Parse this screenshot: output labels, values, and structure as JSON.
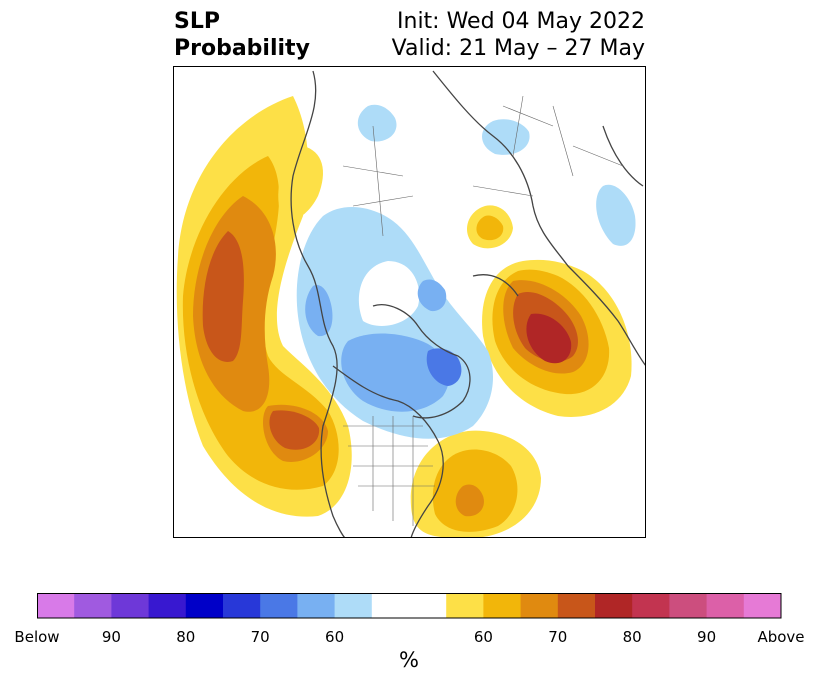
{
  "title": {
    "left_line1": "SLP",
    "left_line2": "Probability",
    "right_line1": "Init: Wed 04 May 2022",
    "right_line2": "Valid: 21 May – 27 May"
  },
  "colorbar": {
    "unit": "%",
    "tick_labels": [
      "Below",
      "90",
      "80",
      "70",
      "60",
      "60",
      "70",
      "80",
      "90",
      "Above"
    ],
    "colors": [
      "#d87ae8",
      "#a05ae0",
      "#6e38d8",
      "#3818d0",
      "#0000c8",
      "#2838d8",
      "#4a78e6",
      "#78b0f2",
      "#aedcf8",
      "#ffffff",
      "#ffffff",
      "#fde047",
      "#f2b60a",
      "#e08a10",
      "#c8561a",
      "#b02626",
      "#c23450",
      "#cc4e7e",
      "#dc60a8",
      "#e67ad6"
    ]
  },
  "map": {
    "features": [
      "above-normal-pacific-high",
      "above-normal-atlantic-high",
      "above-normal-europe-high",
      "above-normal-western-canada",
      "above-normal-siberia-small",
      "below-normal-arctic-band",
      "below-normal-canadian-arctic"
    ]
  }
}
